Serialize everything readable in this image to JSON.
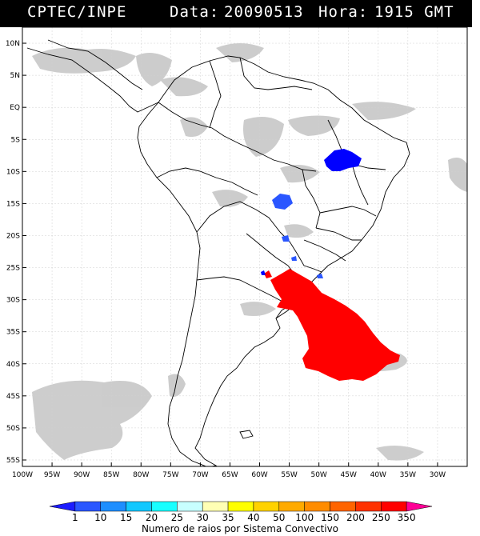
{
  "header": {
    "agency": "CPTEC/INPE",
    "date_label": "Data:",
    "date_value": "20090513",
    "time_label": "Hora:",
    "time_value": "1915 GMT"
  },
  "map": {
    "lon_range": [
      -100,
      -25
    ],
    "lat_range": [
      -56,
      12.5
    ],
    "lat_ticks": [
      {
        "value": 10,
        "label": "10N"
      },
      {
        "value": 5,
        "label": "5N"
      },
      {
        "value": 0,
        "label": "EQ"
      },
      {
        "value": -5,
        "label": "5S"
      },
      {
        "value": -10,
        "label": "10S"
      },
      {
        "value": -15,
        "label": "15S"
      },
      {
        "value": -20,
        "label": "20S"
      },
      {
        "value": -25,
        "label": "25S"
      },
      {
        "value": -30,
        "label": "30S"
      },
      {
        "value": -35,
        "label": "35S"
      },
      {
        "value": -40,
        "label": "40S"
      },
      {
        "value": -45,
        "label": "45S"
      },
      {
        "value": -50,
        "label": "50S"
      },
      {
        "value": -55,
        "label": "55S"
      }
    ],
    "lon_ticks": [
      {
        "value": -100,
        "label": "100W"
      },
      {
        "value": -95,
        "label": "95W"
      },
      {
        "value": -90,
        "label": "90W"
      },
      {
        "value": -85,
        "label": "85W"
      },
      {
        "value": -80,
        "label": "80W"
      },
      {
        "value": -75,
        "label": "75W"
      },
      {
        "value": -70,
        "label": "70W"
      },
      {
        "value": -65,
        "label": "65W"
      },
      {
        "value": -60,
        "label": "60W"
      },
      {
        "value": -55,
        "label": "55W"
      },
      {
        "value": -50,
        "label": "50W"
      },
      {
        "value": -45,
        "label": "45W"
      },
      {
        "value": -40,
        "label": "40W"
      },
      {
        "value": -35,
        "label": "35W"
      },
      {
        "value": -30,
        "label": "30W"
      }
    ],
    "colors": {
      "cloud": "#c4c4c4",
      "coast": "#000000",
      "ray_high": "#ff0000",
      "ray_low": "#0000ff",
      "ray_mid": "#0a4cff"
    }
  },
  "colorbar": {
    "labels": [
      "1",
      "10",
      "15",
      "20",
      "25",
      "30",
      "35",
      "40",
      "50",
      "100",
      "150",
      "200",
      "250",
      "350"
    ],
    "colors": [
      "#1c1cff",
      "#2a56ff",
      "#1e8eff",
      "#12c8ff",
      "#18ffff",
      "#c8ffff",
      "#ffffb4",
      "#ffff00",
      "#ffd200",
      "#ffaa00",
      "#ff8c00",
      "#ff6400",
      "#ff3200",
      "#ff0000",
      "#ff0096"
    ],
    "caption": "Numero de raios por Sistema Convectivo"
  }
}
